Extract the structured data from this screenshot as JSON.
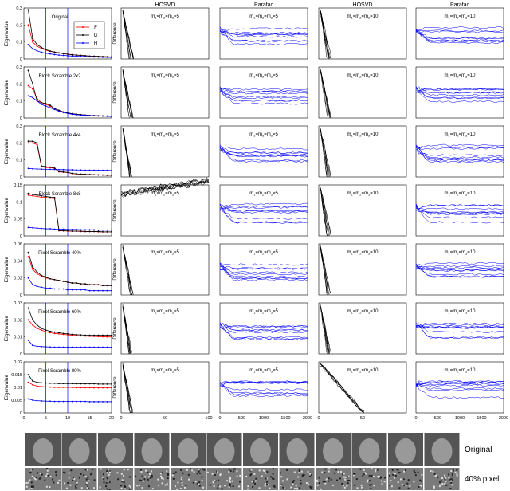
{
  "column_headers": [
    "HOSVD",
    "Parafac",
    "HOSVD",
    "Parafac"
  ],
  "eigen_ylabel": "Eigenvalue",
  "diff_ylabel": "Difference",
  "legend": [
    "F",
    "G",
    "H"
  ],
  "colors": {
    "F": "#ff0000",
    "G": "#000000",
    "H": "#0000ff",
    "curve": "#0000ff",
    "hosvd": "#000000",
    "vline": "#0000ff"
  },
  "bottom_labels": [
    "Original",
    "40% pixel"
  ],
  "chart_data": [
    {
      "type": "line",
      "row_label": "Original",
      "x": [
        1,
        2,
        3,
        4,
        5,
        6,
        7,
        8,
        9,
        10,
        11,
        12,
        13,
        14,
        15,
        16,
        17,
        18,
        19,
        20
      ],
      "xlim": [
        0,
        20
      ],
      "xticks": [
        0,
        5,
        10,
        15,
        20
      ],
      "ylim": [
        0,
        0.3
      ],
      "yticks": [
        0,
        0.1,
        0.2,
        0.3
      ],
      "vlines": [
        5,
        10
      ],
      "series": [
        {
          "name": "F",
          "values": [
            0.2,
            0.1,
            0.075,
            0.062,
            0.052,
            0.045,
            0.04,
            0.035,
            0.031,
            0.028,
            0.025,
            0.023,
            0.021,
            0.019,
            0.017,
            0.016,
            0.015,
            0.014,
            0.013,
            0.012
          ]
        },
        {
          "name": "G",
          "values": [
            0.29,
            0.12,
            0.085,
            0.068,
            0.055,
            0.047,
            0.041,
            0.036,
            0.032,
            0.028,
            0.025,
            0.023,
            0.021,
            0.019,
            0.017,
            0.016,
            0.015,
            0.014,
            0.013,
            0.012
          ]
        },
        {
          "name": "H",
          "values": [
            0.085,
            0.06,
            0.048,
            0.04,
            0.034,
            0.03,
            0.026,
            0.023,
            0.021,
            0.019,
            0.017,
            0.016,
            0.015,
            0.014,
            0.013,
            0.012,
            0.011,
            0.01,
            0.01,
            0.009
          ]
        }
      ],
      "hosvd_label": "m1=m2=m3=5",
      "parafac_label": "m1=m2=m3=5",
      "hosvd10_label": "m1=m2=m3=10",
      "parafac10_label": "m1=m2=m3=10"
    },
    {
      "type": "line",
      "row_label": "Block Scramble 2x2",
      "x": [
        1,
        2,
        3,
        4,
        5,
        6,
        7,
        8,
        9,
        10,
        11,
        12,
        13,
        14,
        15,
        16,
        17,
        18,
        19,
        20
      ],
      "xlim": [
        0,
        20
      ],
      "xticks": [
        0,
        5,
        10,
        15,
        20
      ],
      "ylim": [
        0,
        0.3
      ],
      "yticks": [
        0,
        0.1,
        0.2,
        0.3
      ],
      "vlines": [
        5,
        10
      ],
      "series": [
        {
          "name": "F",
          "values": [
            0.19,
            0.17,
            0.115,
            0.09,
            0.08,
            0.07,
            0.055,
            0.045,
            0.035,
            0.03,
            0.025,
            0.022,
            0.019,
            0.017,
            0.015,
            0.014,
            0.013,
            0.012,
            0.011,
            0.01
          ]
        },
        {
          "name": "G",
          "values": [
            0.28,
            0.2,
            0.1,
            0.09,
            0.085,
            0.075,
            0.055,
            0.045,
            0.035,
            0.03,
            0.025,
            0.022,
            0.019,
            0.017,
            0.015,
            0.014,
            0.013,
            0.012,
            0.011,
            0.01
          ]
        },
        {
          "name": "H",
          "values": [
            0.13,
            0.12,
            0.1,
            0.08,
            0.07,
            0.06,
            0.05,
            0.04,
            0.032,
            0.027,
            0.022,
            0.019,
            0.017,
            0.015,
            0.014,
            0.013,
            0.012,
            0.011,
            0.01,
            0.009
          ]
        }
      ]
    },
    {
      "type": "line",
      "row_label": "Block Scramble 4x4",
      "x": [
        1,
        2,
        3,
        4,
        5,
        6,
        7,
        8,
        9,
        10,
        11,
        12,
        13,
        14,
        15,
        16,
        17,
        18,
        19,
        20
      ],
      "xlim": [
        0,
        20
      ],
      "xticks": [
        0,
        5,
        10,
        15,
        20
      ],
      "ylim": [
        0,
        0.3
      ],
      "yticks": [
        0,
        0.1,
        0.2,
        0.3
      ],
      "vlines": [
        5,
        10
      ],
      "series": [
        {
          "name": "F",
          "values": [
            0.2,
            0.2,
            0.19,
            0.06,
            0.055,
            0.055,
            0.05,
            0.03,
            0.028,
            0.026,
            0.02,
            0.018,
            0.016,
            0.015,
            0.014,
            0.013,
            0.012,
            0.011,
            0.01,
            0.01
          ]
        },
        {
          "name": "G",
          "values": [
            0.21,
            0.21,
            0.2,
            0.065,
            0.06,
            0.058,
            0.052,
            0.032,
            0.029,
            0.027,
            0.021,
            0.018,
            0.016,
            0.015,
            0.014,
            0.013,
            0.012,
            0.011,
            0.01,
            0.01
          ]
        },
        {
          "name": "H",
          "values": [
            0.05,
            0.048,
            0.047,
            0.046,
            0.045,
            0.045,
            0.044,
            0.043,
            0.043,
            0.042,
            0.042,
            0.041,
            0.041,
            0.04,
            0.04,
            0.04,
            0.039,
            0.039,
            0.039,
            0.038
          ]
        }
      ]
    },
    {
      "type": "line",
      "row_label": "Block Scramble 8x8",
      "x": [
        1,
        2,
        3,
        4,
        5,
        6,
        7,
        8,
        9,
        10,
        11,
        12,
        13,
        14,
        15,
        16,
        17,
        18,
        19,
        20
      ],
      "xlim": [
        0,
        20
      ],
      "xticks": [
        0,
        5,
        10,
        15,
        20
      ],
      "ylim": [
        0,
        0.15
      ],
      "yticks": [
        0,
        0.05,
        0.1,
        0.15
      ],
      "vlines": [
        5,
        10
      ],
      "series": [
        {
          "name": "F",
          "values": [
            0.12,
            0.118,
            0.116,
            0.114,
            0.113,
            0.111,
            0.11,
            0.015,
            0.015,
            0.014,
            0.014,
            0.014,
            0.013,
            0.013,
            0.013,
            0.013,
            0.012,
            0.012,
            0.012,
            0.012
          ]
        },
        {
          "name": "G",
          "values": [
            0.125,
            0.122,
            0.12,
            0.118,
            0.116,
            0.114,
            0.113,
            0.016,
            0.015,
            0.015,
            0.014,
            0.014,
            0.014,
            0.013,
            0.013,
            0.013,
            0.013,
            0.012,
            0.012,
            0.012
          ]
        },
        {
          "name": "H",
          "values": [
            0.025,
            0.024,
            0.023,
            0.022,
            0.021,
            0.021,
            0.02,
            0.02,
            0.02,
            0.019,
            0.019,
            0.019,
            0.018,
            0.018,
            0.018,
            0.018,
            0.017,
            0.017,
            0.017,
            0.017
          ]
        }
      ]
    },
    {
      "type": "line",
      "row_label": "Pixel Scramble 40%",
      "x": [
        1,
        2,
        3,
        4,
        5,
        6,
        7,
        8,
        9,
        10,
        11,
        12,
        13,
        14,
        15,
        16,
        17,
        18,
        19,
        20
      ],
      "xlim": [
        0,
        20
      ],
      "xticks": [
        0,
        5,
        10,
        15,
        20
      ],
      "ylim": [
        0,
        0.06
      ],
      "yticks": [
        0,
        0.02,
        0.04,
        0.06
      ],
      "vlines": [
        5,
        10
      ],
      "series": [
        {
          "name": "F",
          "values": [
            0.045,
            0.03,
            0.025,
            0.022,
            0.02,
            0.019,
            0.018,
            0.017,
            0.016,
            0.015,
            0.014,
            0.014,
            0.013,
            0.013,
            0.012,
            0.012,
            0.012,
            0.011,
            0.011,
            0.011
          ]
        },
        {
          "name": "G",
          "values": [
            0.05,
            0.033,
            0.027,
            0.023,
            0.021,
            0.019,
            0.018,
            0.017,
            0.016,
            0.015,
            0.014,
            0.014,
            0.013,
            0.013,
            0.012,
            0.012,
            0.012,
            0.011,
            0.011,
            0.011
          ]
        },
        {
          "name": "H",
          "values": [
            0.02,
            0.012,
            0.01,
            0.009,
            0.008,
            0.008,
            0.007,
            0.007,
            0.007,
            0.006,
            0.006,
            0.006,
            0.006,
            0.006,
            0.005,
            0.005,
            0.005,
            0.005,
            0.005,
            0.005
          ]
        }
      ]
    },
    {
      "type": "line",
      "row_label": "Pixel Scramble 60%",
      "x": [
        1,
        2,
        3,
        4,
        5,
        6,
        7,
        8,
        9,
        10,
        11,
        12,
        13,
        14,
        15,
        16,
        17,
        18,
        19,
        20
      ],
      "xlim": [
        0,
        20
      ],
      "xticks": [
        0,
        5,
        10,
        15,
        20
      ],
      "ylim": [
        0,
        0.03
      ],
      "yticks": [
        0,
        0.01,
        0.02,
        0.03
      ],
      "vlines": [
        5,
        10
      ],
      "series": [
        {
          "name": "F",
          "values": [
            0.02,
            0.017,
            0.015,
            0.014,
            0.013,
            0.0125,
            0.012,
            0.0118,
            0.0115,
            0.0112,
            0.011,
            0.0108,
            0.0106,
            0.0105,
            0.0104,
            0.0103,
            0.0102,
            0.0101,
            0.01,
            0.01
          ]
        },
        {
          "name": "G",
          "values": [
            0.027,
            0.02,
            0.017,
            0.015,
            0.014,
            0.0133,
            0.0128,
            0.0125,
            0.012,
            0.0118,
            0.0115,
            0.0113,
            0.0112,
            0.011,
            0.011,
            0.011,
            0.011,
            0.011,
            0.011,
            0.011
          ]
        },
        {
          "name": "H",
          "values": [
            0.008,
            0.005,
            0.0045,
            0.0043,
            0.0042,
            0.0041,
            0.004,
            0.004,
            0.004,
            0.004,
            0.004,
            0.004,
            0.004,
            0.004,
            0.004,
            0.004,
            0.004,
            0.004,
            0.004,
            0.004
          ]
        }
      ]
    },
    {
      "type": "line",
      "row_label": "Pixel Scramble 80%",
      "x": [
        1,
        2,
        3,
        4,
        5,
        6,
        7,
        8,
        9,
        10,
        11,
        12,
        13,
        14,
        15,
        16,
        17,
        18,
        19,
        20
      ],
      "xlim": [
        0,
        20
      ],
      "xticks": [
        0,
        5,
        10,
        15,
        20
      ],
      "ylim": [
        0,
        0.02
      ],
      "yticks": [
        0,
        0.005,
        0.01,
        0.015,
        0.02
      ],
      "vlines": [
        5,
        10
      ],
      "series": [
        {
          "name": "F",
          "values": [
            0.012,
            0.011,
            0.0105,
            0.0103,
            0.0102,
            0.0101,
            0.01,
            0.01,
            0.01,
            0.01,
            0.01,
            0.0099,
            0.0099,
            0.0099,
            0.0099,
            0.0098,
            0.0098,
            0.0098,
            0.0098,
            0.0098
          ]
        },
        {
          "name": "G",
          "values": [
            0.015,
            0.0125,
            0.012,
            0.0118,
            0.0117,
            0.0116,
            0.0116,
            0.0115,
            0.0115,
            0.0115,
            0.0115,
            0.0114,
            0.0114,
            0.0114,
            0.0114,
            0.0114,
            0.0113,
            0.0113,
            0.0113,
            0.0113
          ]
        },
        {
          "name": "H",
          "values": [
            0.0055,
            0.005,
            0.0048,
            0.0047,
            0.0046,
            0.0046,
            0.0045,
            0.0045,
            0.0045,
            0.0045,
            0.0045,
            0.0045,
            0.0045,
            0.0045,
            0.0044,
            0.0044,
            0.0044,
            0.0044,
            0.0044,
            0.0044
          ]
        }
      ]
    }
  ],
  "diff_axes": {
    "hosvd_xticks": [
      0,
      50,
      100
    ],
    "parafac_xticks": [
      0,
      500,
      1000,
      1500,
      2000
    ],
    "hosvd10_xticks": [
      0,
      50
    ],
    "parafac10_xticks": [
      0,
      500,
      1000,
      1500,
      2000
    ]
  },
  "panel_labels": {
    "m5": "m1=m2=m3=5",
    "m10": "m1=m2=m3=10"
  }
}
